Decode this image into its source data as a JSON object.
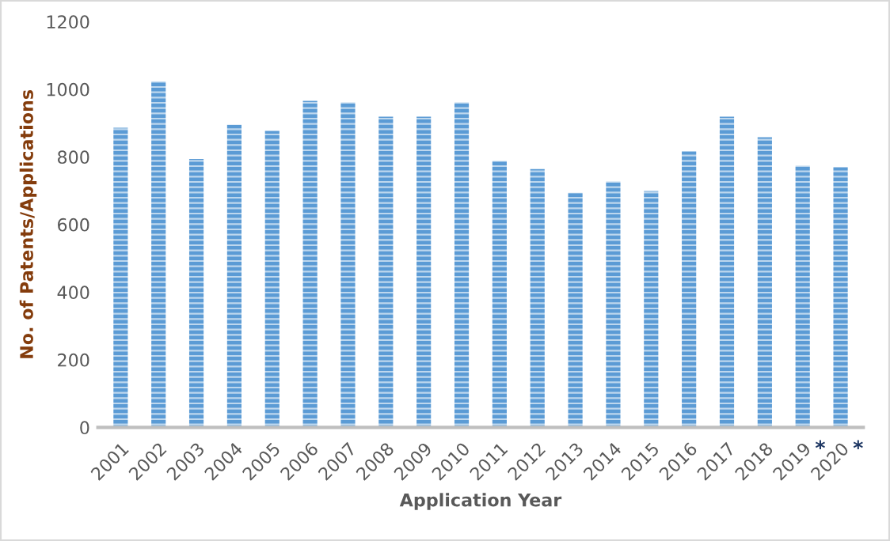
{
  "chart_data": {
    "type": "bar",
    "xlabel": "Application Year",
    "ylabel": "No. of Patents/Applications",
    "categories": [
      "2001",
      "2002",
      "2003",
      "2004",
      "2005",
      "2006",
      "2007",
      "2008",
      "2009",
      "2010",
      "2011",
      "2012",
      "2013",
      "2014",
      "2015",
      "2016",
      "2017",
      "2018",
      "2019",
      "2020"
    ],
    "values": [
      886,
      1023,
      794,
      895,
      877,
      966,
      961,
      919,
      919,
      961,
      788,
      764,
      694,
      727,
      699,
      816,
      919,
      858,
      774,
      769
    ],
    "color": "#5b9bd5",
    "ylim": [
      0,
      1200
    ],
    "yticks": [
      0,
      200,
      400,
      600,
      800,
      1000,
      1200
    ],
    "annotations": [
      "*",
      "*"
    ],
    "grid": false
  }
}
